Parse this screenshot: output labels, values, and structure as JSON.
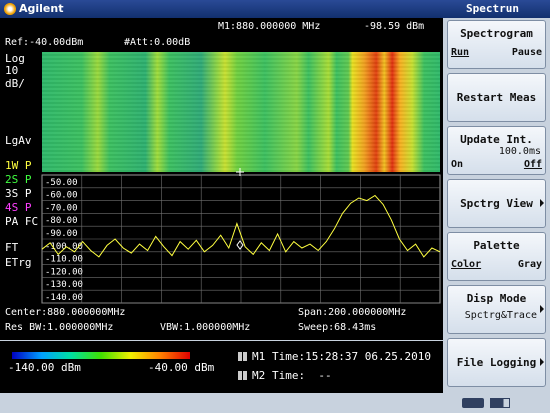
{
  "header": {
    "brand": "Agilent",
    "mode": "Spectrun"
  },
  "screen": {
    "marker": "M1:880.000000 MHz",
    "marker_level": "-98.59 dBm",
    "ref": "Ref:-40.00dBm",
    "att": "#Att:0.00dB",
    "left_labels": [
      {
        "text": "Log",
        "color": "#ffffff"
      },
      {
        "text": "10",
        "color": "#ffffff"
      },
      {
        "text": "dB/",
        "color": "#ffffff"
      },
      {
        "text": "LgAv",
        "color": "#ffffff"
      },
      {
        "text": "1W P",
        "color": "#ffff40"
      },
      {
        "text": "2S P",
        "color": "#40ff40"
      },
      {
        "text": "3S P",
        "color": "#ffffff"
      },
      {
        "text": "4S P",
        "color": "#ff40ff"
      },
      {
        "text": "PA FC",
        "color": "#ffffff"
      },
      {
        "text": "FT",
        "color": "#ffffff"
      },
      {
        "text": "ETrg",
        "color": "#ffffff"
      }
    ],
    "trace": {
      "color": "#ffff40",
      "ylim": [
        -140,
        -40
      ],
      "yticks": [
        {
          "value": -50,
          "label": "-50.00"
        },
        {
          "value": -60,
          "label": "-60.00"
        },
        {
          "value": -70,
          "label": "-70.00"
        },
        {
          "value": -80,
          "label": "-80.00"
        },
        {
          "value": -90,
          "label": "-90.00"
        },
        {
          "value": -100,
          "label": "-100.00"
        },
        {
          "value": -110,
          "label": "-110.00"
        },
        {
          "value": -120,
          "label": "-120.00"
        },
        {
          "value": -130,
          "label": "-130.00"
        },
        {
          "value": -140,
          "label": "-140.00"
        }
      ],
      "values": [
        -98,
        -93,
        -102,
        -96,
        -100,
        -92,
        -99,
        -104,
        -95,
        -90,
        -97,
        -101,
        -94,
        -99,
        -88,
        -96,
        -103,
        -92,
        -98,
        -91,
        -100,
        -95,
        -87,
        -97,
        -78,
        -96,
        -102,
        -93,
        -99,
        -86,
        -100,
        -92,
        -97,
        -94,
        -99,
        -92,
        -82,
        -70,
        -62,
        -58,
        -60,
        -56,
        -63,
        -75,
        -90,
        -99,
        -94,
        -104,
        -97,
        -100
      ]
    },
    "footer": {
      "center": "Center:880.000000MHz",
      "span": "Span:200.000000MHz",
      "rbw": "Res BW:1.000000MHz",
      "vbw": "VBW:1.000000MHz",
      "sweep": "Sweep:68.43ms"
    }
  },
  "palette": {
    "min": "-140.00 dBm",
    "max": "-40.00 dBm"
  },
  "times": [
    {
      "label": "M1",
      "text": "Time:15:28:37 06.25.2010"
    },
    {
      "label": "M2",
      "text": "Time:  --"
    }
  ],
  "softkeys": [
    {
      "title": "Spectrogram",
      "left": "Run",
      "right": "Pause",
      "active": "left"
    },
    {
      "title": "Restart Meas"
    },
    {
      "title": "Update Int.",
      "value": "100.0ms",
      "left": "On",
      "right": "Off",
      "active": "right"
    },
    {
      "title": "Spctrg View",
      "submenu": true
    },
    {
      "title": "Palette",
      "left": "Color",
      "right": "Gray",
      "active": "left"
    },
    {
      "title": "Disp Mode",
      "value": "Spctrg&Trace",
      "submenu": true
    },
    {
      "title": "File Logging",
      "submenu": true
    }
  ]
}
